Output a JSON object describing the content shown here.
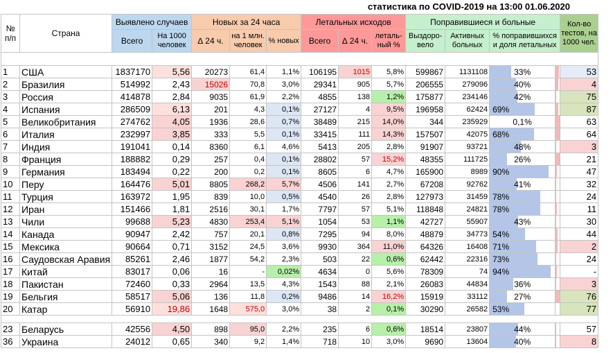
{
  "title": "статистика по COVID-2019 на 13:00 01.06.2020",
  "headers": {
    "num": "№ п/п",
    "country": "Страна",
    "detected": "Выявлено случаев",
    "detected_total": "Всего",
    "detected_per1000": "На 1000 человек",
    "new24": "Новых за 24 часа",
    "new_delta": "∆ 24 ч.",
    "new_per_mln": "на 1 млн. человек",
    "new_pct": "% новых",
    "lethal": "Летальных исходов",
    "lethal_total": "Всего",
    "lethal_delta": "∆ 24 ч.",
    "lethal_pct": "леталь-ный %",
    "recovered": "Поправившиеся и больные",
    "recovered_total": "Выздоро-вело",
    "active": "Активных больных",
    "recovered_share": "% поправившихся и доля летальных",
    "tests": "Кол-во тестов, на 1000 чел."
  },
  "rows": [
    {
      "n": "1",
      "country": "США",
      "total": "1837170",
      "per1000": "5,56",
      "d24": "20273",
      "permln": "61,4",
      "newpct": "1,1%",
      "leth": "106195",
      "ld24": "1015",
      "lpct": "5,8%",
      "rec": "599867",
      "active": "1131108",
      "share": "33%",
      "share_v": 0.33,
      "leth_v": 0.15,
      "tests": "53"
    },
    {
      "n": "2",
      "country": "Бразилия",
      "total": "514992",
      "per1000": "2,43",
      "d24": "15026",
      "permln": "70,8",
      "newpct": "3,0%",
      "leth": "29341",
      "ld24": "905",
      "lpct": "5,7%",
      "rec": "206555",
      "active": "279096",
      "share": "40%",
      "share_v": 0.4,
      "leth_v": 0.12,
      "tests": "4"
    },
    {
      "n": "3",
      "country": "Россия",
      "total": "414878",
      "per1000": "2,84",
      "d24": "9035",
      "permln": "61,9",
      "newpct": "2,2%",
      "leth": "4855",
      "ld24": "138",
      "lpct": "1,2%",
      "rec": "175877",
      "active": "234146",
      "share": "42%",
      "share_v": 0.42,
      "leth_v": 0.02,
      "tests": "75"
    },
    {
      "n": "4",
      "country": "Испания",
      "total": "286509",
      "per1000": "6,13",
      "d24": "201",
      "permln": "4,3",
      "newpct": "0,1%",
      "leth": "27127",
      "ld24": "4",
      "lpct": "9,5%",
      "rec": "196958",
      "active": "62424",
      "share": "69%",
      "share_v": 0.69,
      "leth_v": 0.12,
      "tests": "87"
    },
    {
      "n": "5",
      "country": "Великобритания",
      "total": "274762",
      "per1000": "4,05",
      "d24": "1936",
      "permln": "28,6",
      "newpct": "0,7%",
      "leth": "38489",
      "ld24": "215",
      "lpct": "14,0%",
      "rec": "344",
      "active": "235929",
      "share": "0,1%",
      "share_v": 0.0,
      "leth_v": 0.2,
      "tests": "63"
    },
    {
      "n": "6",
      "country": "Италия",
      "total": "232997",
      "per1000": "3,85",
      "d24": "333",
      "permln": "5,5",
      "newpct": "0,1%",
      "leth": "33415",
      "ld24": "111",
      "lpct": "14,3%",
      "rec": "157507",
      "active": "42075",
      "share": "68%",
      "share_v": 0.68,
      "leth_v": 0.2,
      "tests": "64"
    },
    {
      "n": "7",
      "country": "Индия",
      "total": "191041",
      "per1000": "0,14",
      "d24": "8360",
      "permln": "6,1",
      "newpct": "4,6%",
      "leth": "5413",
      "ld24": "205",
      "lpct": "2,8%",
      "rec": "91907",
      "active": "93721",
      "share": "48%",
      "share_v": 0.48,
      "leth_v": 0.04,
      "tests": "3"
    },
    {
      "n": "8",
      "country": "Франция",
      "total": "188882",
      "per1000": "0,29",
      "d24": "257",
      "permln": "0,4",
      "newpct": "0,1%",
      "leth": "28802",
      "ld24": "57",
      "lpct": "15,2%",
      "rec": "48355",
      "active": "111725",
      "share": "26%",
      "share_v": 0.26,
      "leth_v": 0.2,
      "tests": "21"
    },
    {
      "n": "9",
      "country": "Германия",
      "total": "183494",
      "per1000": "0,22",
      "d24": "200",
      "permln": "0,2",
      "newpct": "0,1%",
      "leth": "8605",
      "ld24": "6",
      "lpct": "4,7%",
      "rec": "165900",
      "active": "8989",
      "share": "90%",
      "share_v": 0.9,
      "leth_v": 0.05,
      "tests": "47"
    },
    {
      "n": "10",
      "country": "Перу",
      "total": "164476",
      "per1000": "5,01",
      "d24": "8805",
      "permln": "268,2",
      "newpct": "5,7%",
      "leth": "4506",
      "ld24": "141",
      "lpct": "2,7%",
      "rec": "67208",
      "active": "92762",
      "share": "41%",
      "share_v": 0.41,
      "leth_v": 0.03,
      "tests": "32"
    },
    {
      "n": "11",
      "country": "Турция",
      "total": "163972",
      "per1000": "1,95",
      "d24": "839",
      "permln": "10,0",
      "newpct": "0,5%",
      "leth": "4540",
      "ld24": "26",
      "lpct": "2,8%",
      "rec": "127973",
      "active": "31459",
      "share": "78%",
      "share_v": 0.78,
      "leth_v": 0.04,
      "tests": "24"
    },
    {
      "n": "12",
      "country": "Иран",
      "total": "151466",
      "per1000": "1,81",
      "d24": "2516",
      "permln": "30,1",
      "newpct": "1,7%",
      "leth": "7797",
      "ld24": "57",
      "lpct": "5,1%",
      "rec": "118848",
      "active": "24821",
      "share": "78%",
      "share_v": 0.78,
      "leth_v": 0.05,
      "tests": "11"
    },
    {
      "n": "13",
      "country": "Чили",
      "total": "99688",
      "per1000": "5,23",
      "d24": "4830",
      "permln": "253,4",
      "newpct": "5,1%",
      "leth": "1054",
      "ld24": "53",
      "lpct": "1,1%",
      "rec": "42727",
      "active": "55907",
      "share": "43%",
      "share_v": 0.43,
      "leth_v": 0.01,
      "tests": "30"
    },
    {
      "n": "14",
      "country": "Канада",
      "total": "90947",
      "per1000": "2,42",
      "d24": "757",
      "permln": "20,1",
      "newpct": "0,8%",
      "leth": "7295",
      "ld24": "94",
      "lpct": "8,0%",
      "rec": "48879",
      "active": "34773",
      "share": "54%",
      "share_v": 0.54,
      "leth_v": 0.08,
      "tests": "44"
    },
    {
      "n": "15",
      "country": "Мексика",
      "total": "90664",
      "per1000": "0,71",
      "d24": "3152",
      "permln": "24,5",
      "newpct": "3,6%",
      "leth": "9930",
      "ld24": "364",
      "lpct": "11,0%",
      "rec": "64326",
      "active": "16408",
      "share": "71%",
      "share_v": 0.71,
      "leth_v": 0.11,
      "tests": "2"
    },
    {
      "n": "16",
      "country": "Саудовская Аравия",
      "total": "85261",
      "per1000": "2,46",
      "d24": "1877",
      "permln": "54,2",
      "newpct": "2,3%",
      "leth": "503",
      "ld24": "22",
      "lpct": "0,6%",
      "rec": "62442",
      "active": "22316",
      "share": "73%",
      "share_v": 0.73,
      "leth_v": 0.01,
      "tests": "24"
    },
    {
      "n": "17",
      "country": "Китай",
      "total": "83017",
      "per1000": "0,06",
      "d24": "16",
      "permln": "-",
      "newpct": "0,02%",
      "leth": "4634",
      "ld24": "0",
      "lpct": "5,6%",
      "rec": "78309",
      "active": "74",
      "share": "94%",
      "share_v": 0.94,
      "leth_v": 0.06,
      "tests": "-"
    },
    {
      "n": "18",
      "country": "Пакистан",
      "total": "72460",
      "per1000": "0,33",
      "d24": "2964",
      "permln": "13,5",
      "newpct": "4,3%",
      "leth": "1543",
      "ld24": "88",
      "lpct": "2,1%",
      "rec": "26083",
      "active": "44834",
      "share": "36%",
      "share_v": 0.36,
      "leth_v": 0.03,
      "tests": "3"
    },
    {
      "n": "19",
      "country": "Бельгия",
      "total": "58517",
      "per1000": "5,06",
      "d24": "136",
      "permln": "11,8",
      "newpct": "0,2%",
      "leth": "9486",
      "ld24": "14",
      "lpct": "16,2%",
      "rec": "15919",
      "active": "33112",
      "share": "27%",
      "share_v": 0.27,
      "leth_v": 0.2,
      "tests": "76"
    },
    {
      "n": "20",
      "country": "Катар",
      "total": "56910",
      "per1000": "19,86",
      "d24": "1648",
      "permln": "575,0",
      "newpct": "3,0%",
      "leth": "38",
      "ld24": "2",
      "lpct": "0,1%",
      "rec": "30290",
      "active": "26582",
      "share": "53%",
      "share_v": 0.53,
      "leth_v": 0.0,
      "tests": "77"
    }
  ],
  "extra_rows": [
    {
      "n": "23",
      "country": "Беларусь",
      "total": "42556",
      "per1000": "4,50",
      "d24": "898",
      "permln": "95,0",
      "newpct": "2,2%",
      "leth": "235",
      "ld24": "6",
      "lpct": "0,6%",
      "rec": "18514",
      "active": "23807",
      "share": "44%",
      "share_v": 0.44,
      "leth_v": 0.01,
      "tests": "57"
    },
    {
      "n": "36",
      "country": "Украина",
      "total": "24012",
      "per1000": "0,65",
      "d24": "340",
      "permln": "9,2",
      "newpct": "1,4%",
      "leth": "718",
      "ld24": "10",
      "lpct": "3,0%",
      "rec": "9690",
      "active": "13604",
      "share": "40%",
      "share_v": 0.4,
      "leth_v": 0.03,
      "tests": "8"
    }
  ],
  "colors": {
    "detected_header": "#bdd7ee",
    "new_header": "#f8cbad",
    "lethal_header": "#ff9999",
    "recovered_header": "#c6efce",
    "tests_header": "#a9d08e",
    "recovered_bar": "#b4c6e7",
    "lethal_bar": "#f4b8b8"
  }
}
